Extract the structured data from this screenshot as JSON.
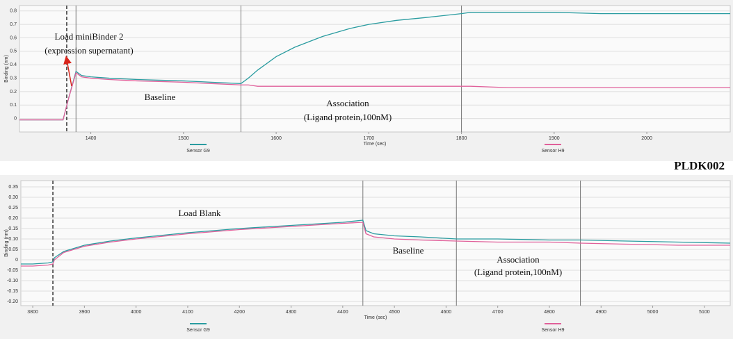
{
  "figure_label": "PLDK002",
  "chart_data": [
    {
      "type": "line",
      "x_label": "Time (sec)",
      "y_label": "Binding (nm)",
      "xlim": [
        1323,
        2090
      ],
      "ylim": [
        -0.1,
        0.84
      ],
      "xticks": [
        1400,
        1500,
        1600,
        1700,
        1800,
        1900,
        2000
      ],
      "yticks": [
        0,
        0.1,
        0.2,
        0.3,
        0.4,
        0.5,
        0.6,
        0.7,
        0.8
      ],
      "grid": true,
      "legend": "bottom",
      "vlines": [
        {
          "x": 1374,
          "dashed": true
        },
        {
          "x": 1384,
          "dashed": false
        },
        {
          "x": 1562,
          "dashed": false
        },
        {
          "x": 1800,
          "dashed": false
        }
      ],
      "annotations": [
        [
          "Load miniBinder 2",
          "(expression supernatant)"
        ],
        [
          "Baseline"
        ],
        [
          "Association",
          "(Ligand protein,100nM)"
        ]
      ],
      "x": [
        1323,
        1340,
        1360,
        1370,
        1376,
        1384,
        1390,
        1400,
        1420,
        1450,
        1500,
        1530,
        1562,
        1570,
        1580,
        1600,
        1620,
        1650,
        1680,
        1700,
        1730,
        1760,
        1800,
        1810,
        1850,
        1900,
        1950,
        2000,
        2050,
        2090
      ],
      "series": [
        {
          "name": "Sensor G9",
          "color": "#2a9ca0",
          "values": [
            -0.01,
            -0.01,
            -0.01,
            -0.01,
            0.15,
            0.35,
            0.32,
            0.31,
            0.3,
            0.29,
            0.28,
            0.27,
            0.26,
            0.3,
            0.36,
            0.46,
            0.53,
            0.61,
            0.67,
            0.7,
            0.73,
            0.75,
            0.78,
            0.79,
            0.79,
            0.79,
            0.78,
            0.78,
            0.78,
            0.78
          ]
        },
        {
          "name": "Sensor H9",
          "color": "#e0609a",
          "values": [
            -0.01,
            -0.01,
            -0.01,
            -0.01,
            0.15,
            0.34,
            0.31,
            0.3,
            0.29,
            0.28,
            0.27,
            0.26,
            0.25,
            0.25,
            0.24,
            0.24,
            0.24,
            0.24,
            0.24,
            0.24,
            0.24,
            0.24,
            0.24,
            0.24,
            0.23,
            0.23,
            0.23,
            0.23,
            0.23,
            0.23
          ]
        }
      ]
    },
    {
      "type": "line",
      "x_label": "Time (sec)",
      "y_label": "Binding (nm)",
      "xlim": [
        3777,
        5150
      ],
      "ylim": [
        -0.22,
        0.38
      ],
      "xticks": [
        3800,
        3900,
        4000,
        4100,
        4200,
        4300,
        4400,
        4500,
        4600,
        4700,
        4800,
        4900,
        5000,
        5100
      ],
      "yticks": [
        0.35,
        {
          "value": 0.3,
          "label": "0.30"
        },
        0.25,
        {
          "value": 0.2,
          "label": "0.20"
        },
        0.15,
        {
          "value": 0.1,
          "label": "0.10"
        },
        0.05,
        0,
        -0.05,
        {
          "value": -0.1,
          "label": "-0.10"
        },
        -0.15,
        {
          "value": -0.2,
          "label": "-0.20"
        }
      ],
      "grid": true,
      "legend": "bottom",
      "vlines": [
        {
          "x": 3839,
          "dashed": true
        },
        {
          "x": 4439,
          "dashed": false
        },
        {
          "x": 4620,
          "dashed": false
        },
        {
          "x": 4860,
          "dashed": false
        }
      ],
      "annotations": [
        [
          "Load Blank"
        ],
        [
          "Baseline"
        ],
        [
          "Association",
          "(Ligand protein,100nM)"
        ]
      ],
      "x": [
        3777,
        3800,
        3830,
        3839,
        3842,
        3860,
        3900,
        3950,
        4000,
        4100,
        4200,
        4300,
        4400,
        4439,
        4445,
        4460,
        4500,
        4550,
        4620,
        4700,
        4800,
        4860,
        4950,
        5050,
        5150
      ],
      "series": [
        {
          "name": "Sensor G9",
          "color": "#2a9ca0",
          "values": [
            -0.02,
            -0.02,
            -0.015,
            -0.01,
            0.01,
            0.04,
            0.07,
            0.09,
            0.105,
            0.13,
            0.15,
            0.165,
            0.18,
            0.19,
            0.14,
            0.125,
            0.115,
            0.11,
            0.1,
            0.1,
            0.095,
            0.095,
            0.09,
            0.085,
            0.08
          ]
        },
        {
          "name": "Sensor H9",
          "color": "#e0609a",
          "values": [
            -0.03,
            -0.03,
            -0.025,
            -0.02,
            0.0,
            0.035,
            0.065,
            0.085,
            0.1,
            0.125,
            0.145,
            0.16,
            0.175,
            0.18,
            0.125,
            0.11,
            0.1,
            0.095,
            0.09,
            0.085,
            0.085,
            0.08,
            0.075,
            0.07,
            0.07
          ]
        }
      ]
    }
  ]
}
